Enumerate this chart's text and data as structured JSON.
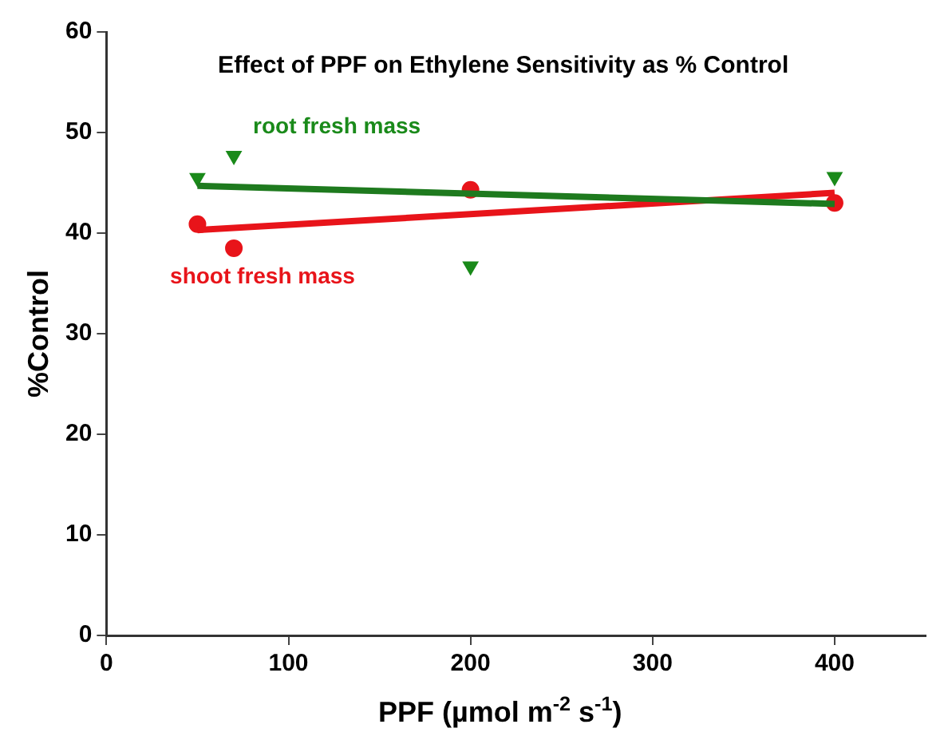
{
  "chart_data": {
    "type": "scatter",
    "title": "Effect of PPF on Ethylene Sensitivity as % Control",
    "xlabel": "PPF (µmol m$^{-2}$ s$^{-1}$)",
    "ylabel": "%Control",
    "series": [
      {
        "name": "root fresh mass",
        "color": "#1a8a1a",
        "marker": "triangle",
        "x": [
          50,
          70,
          200,
          400
        ],
        "values": [
          45.5,
          47.7,
          36.7,
          45.6
        ]
      },
      {
        "name": "shoot fresh mass",
        "color": "#e8141a",
        "marker": "circle",
        "x": [
          50,
          70,
          200,
          400
        ],
        "values": [
          40.9,
          38.5,
          44.3,
          43.0
        ]
      },
      {
        "type": "line",
        "color": "#1e7a1e",
        "x": [
          50,
          400
        ],
        "values": [
          44.7,
          42.9
        ]
      },
      {
        "type": "line",
        "color": "#e8141a",
        "x": [
          50,
          400
        ],
        "values": [
          40.3,
          44.0
        ]
      }
    ],
    "xlim": [
      0,
      450
    ],
    "xticks": [
      0,
      100,
      200,
      300,
      400
    ],
    "ylim": [
      0,
      60
    ],
    "yticks": [
      0,
      10,
      20,
      30,
      40,
      50,
      60
    ],
    "grid": false,
    "legend": false
  }
}
